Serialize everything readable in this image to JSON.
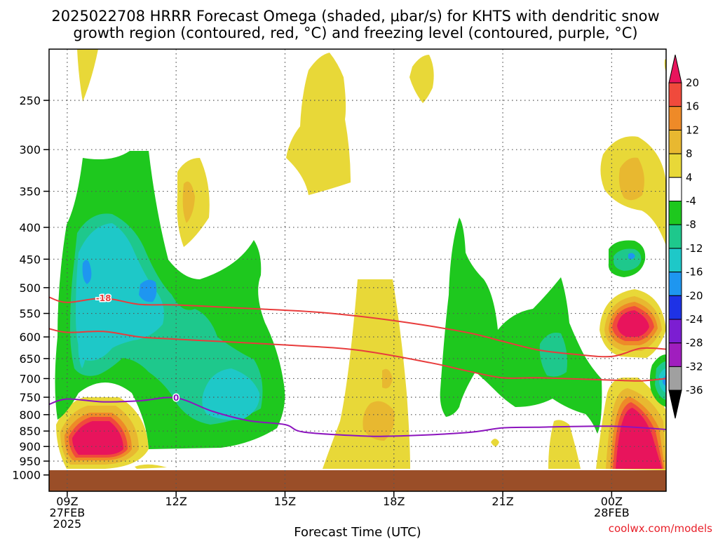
{
  "chart_data": {
    "type": "heatmap",
    "title": {
      "line1": "2025022708 HRRR Forecast Omega (shaded, μbar/s) for KHTS with dendritic snow",
      "line2": "growth region (contoured, red, °C) and freezing level (contoured, purple, °C)"
    },
    "xlabel": "Forecast Time (UTC)",
    "ylabel": "",
    "credit": "coolwx.com/models",
    "y_axis": {
      "scale": "log-pressure",
      "inverted": true,
      "ticks": [
        250,
        300,
        350,
        400,
        450,
        500,
        550,
        600,
        650,
        700,
        750,
        800,
        850,
        900,
        950,
        1000
      ],
      "ylim": [
        1000,
        200
      ]
    },
    "x_axis": {
      "xlim": [
        8.5,
        25.5
      ],
      "ticks": [
        {
          "x": 9,
          "label": "09Z",
          "label2": "27FEB",
          "label3": "2025"
        },
        {
          "x": 12,
          "label": "12Z",
          "label2": "",
          "label3": ""
        },
        {
          "x": 15,
          "label": "15Z",
          "label2": "",
          "label3": ""
        },
        {
          "x": 18,
          "label": "18Z",
          "label2": "",
          "label3": ""
        },
        {
          "x": 21,
          "label": "21Z",
          "label2": "",
          "label3": ""
        },
        {
          "x": 24,
          "label": "00Z",
          "label2": "28FEB",
          "label3": ""
        }
      ]
    },
    "grid": true,
    "colorbar": {
      "placement": "right",
      "levels": [
        20,
        16,
        12,
        8,
        4,
        -4,
        -8,
        -12,
        -16,
        -20,
        -24,
        -28,
        -32,
        -36
      ],
      "colors": [
        "#e8145c",
        "#f04a3c",
        "#ee8a28",
        "#e8b830",
        "#e8d838",
        "#ffffff",
        "#1ec81e",
        "#1ec88c",
        "#1ec8c8",
        "#1e96f0",
        "#1e32e6",
        "#7c1ed2",
        "#a01ebe",
        "#a0a0a0",
        "#000000"
      ]
    },
    "contours": [
      {
        "name": "-18",
        "color": "#e83c3c",
        "label": "-18",
        "points": [
          [
            8.5,
            518
          ],
          [
            9,
            528
          ],
          [
            10,
            520
          ],
          [
            11,
            532
          ],
          [
            12,
            533
          ],
          [
            14,
            540
          ],
          [
            16,
            548
          ],
          [
            18,
            565
          ],
          [
            20,
            590
          ],
          [
            21,
            610
          ],
          [
            22,
            630
          ],
          [
            23,
            640
          ],
          [
            24,
            645
          ],
          [
            24.8,
            626
          ],
          [
            25.5,
            628
          ]
        ]
      },
      {
        "name": "-12",
        "color": "#e83c3c",
        "label": "",
        "points": [
          [
            8.5,
            582
          ],
          [
            9,
            590
          ],
          [
            10,
            588
          ],
          [
            11,
            600
          ],
          [
            12,
            605
          ],
          [
            15,
            618
          ],
          [
            17,
            630
          ],
          [
            19,
            660
          ],
          [
            20,
            680
          ],
          [
            21,
            698
          ],
          [
            22,
            698
          ],
          [
            24,
            704
          ],
          [
            24.8,
            706
          ],
          [
            25.5,
            700
          ]
        ]
      },
      {
        "name": "0",
        "color": "#8c14be",
        "label": "0",
        "points": [
          [
            8.5,
            770
          ],
          [
            9,
            755
          ],
          [
            10,
            763
          ],
          [
            11,
            760
          ],
          [
            12,
            752
          ],
          [
            13,
            790
          ],
          [
            14,
            818
          ],
          [
            15,
            830
          ],
          [
            15.5,
            853
          ],
          [
            17,
            865
          ],
          [
            18,
            866
          ],
          [
            20,
            855
          ],
          [
            21,
            840
          ],
          [
            22,
            838
          ],
          [
            24,
            835
          ],
          [
            25.5,
            845
          ]
        ]
      }
    ]
  }
}
